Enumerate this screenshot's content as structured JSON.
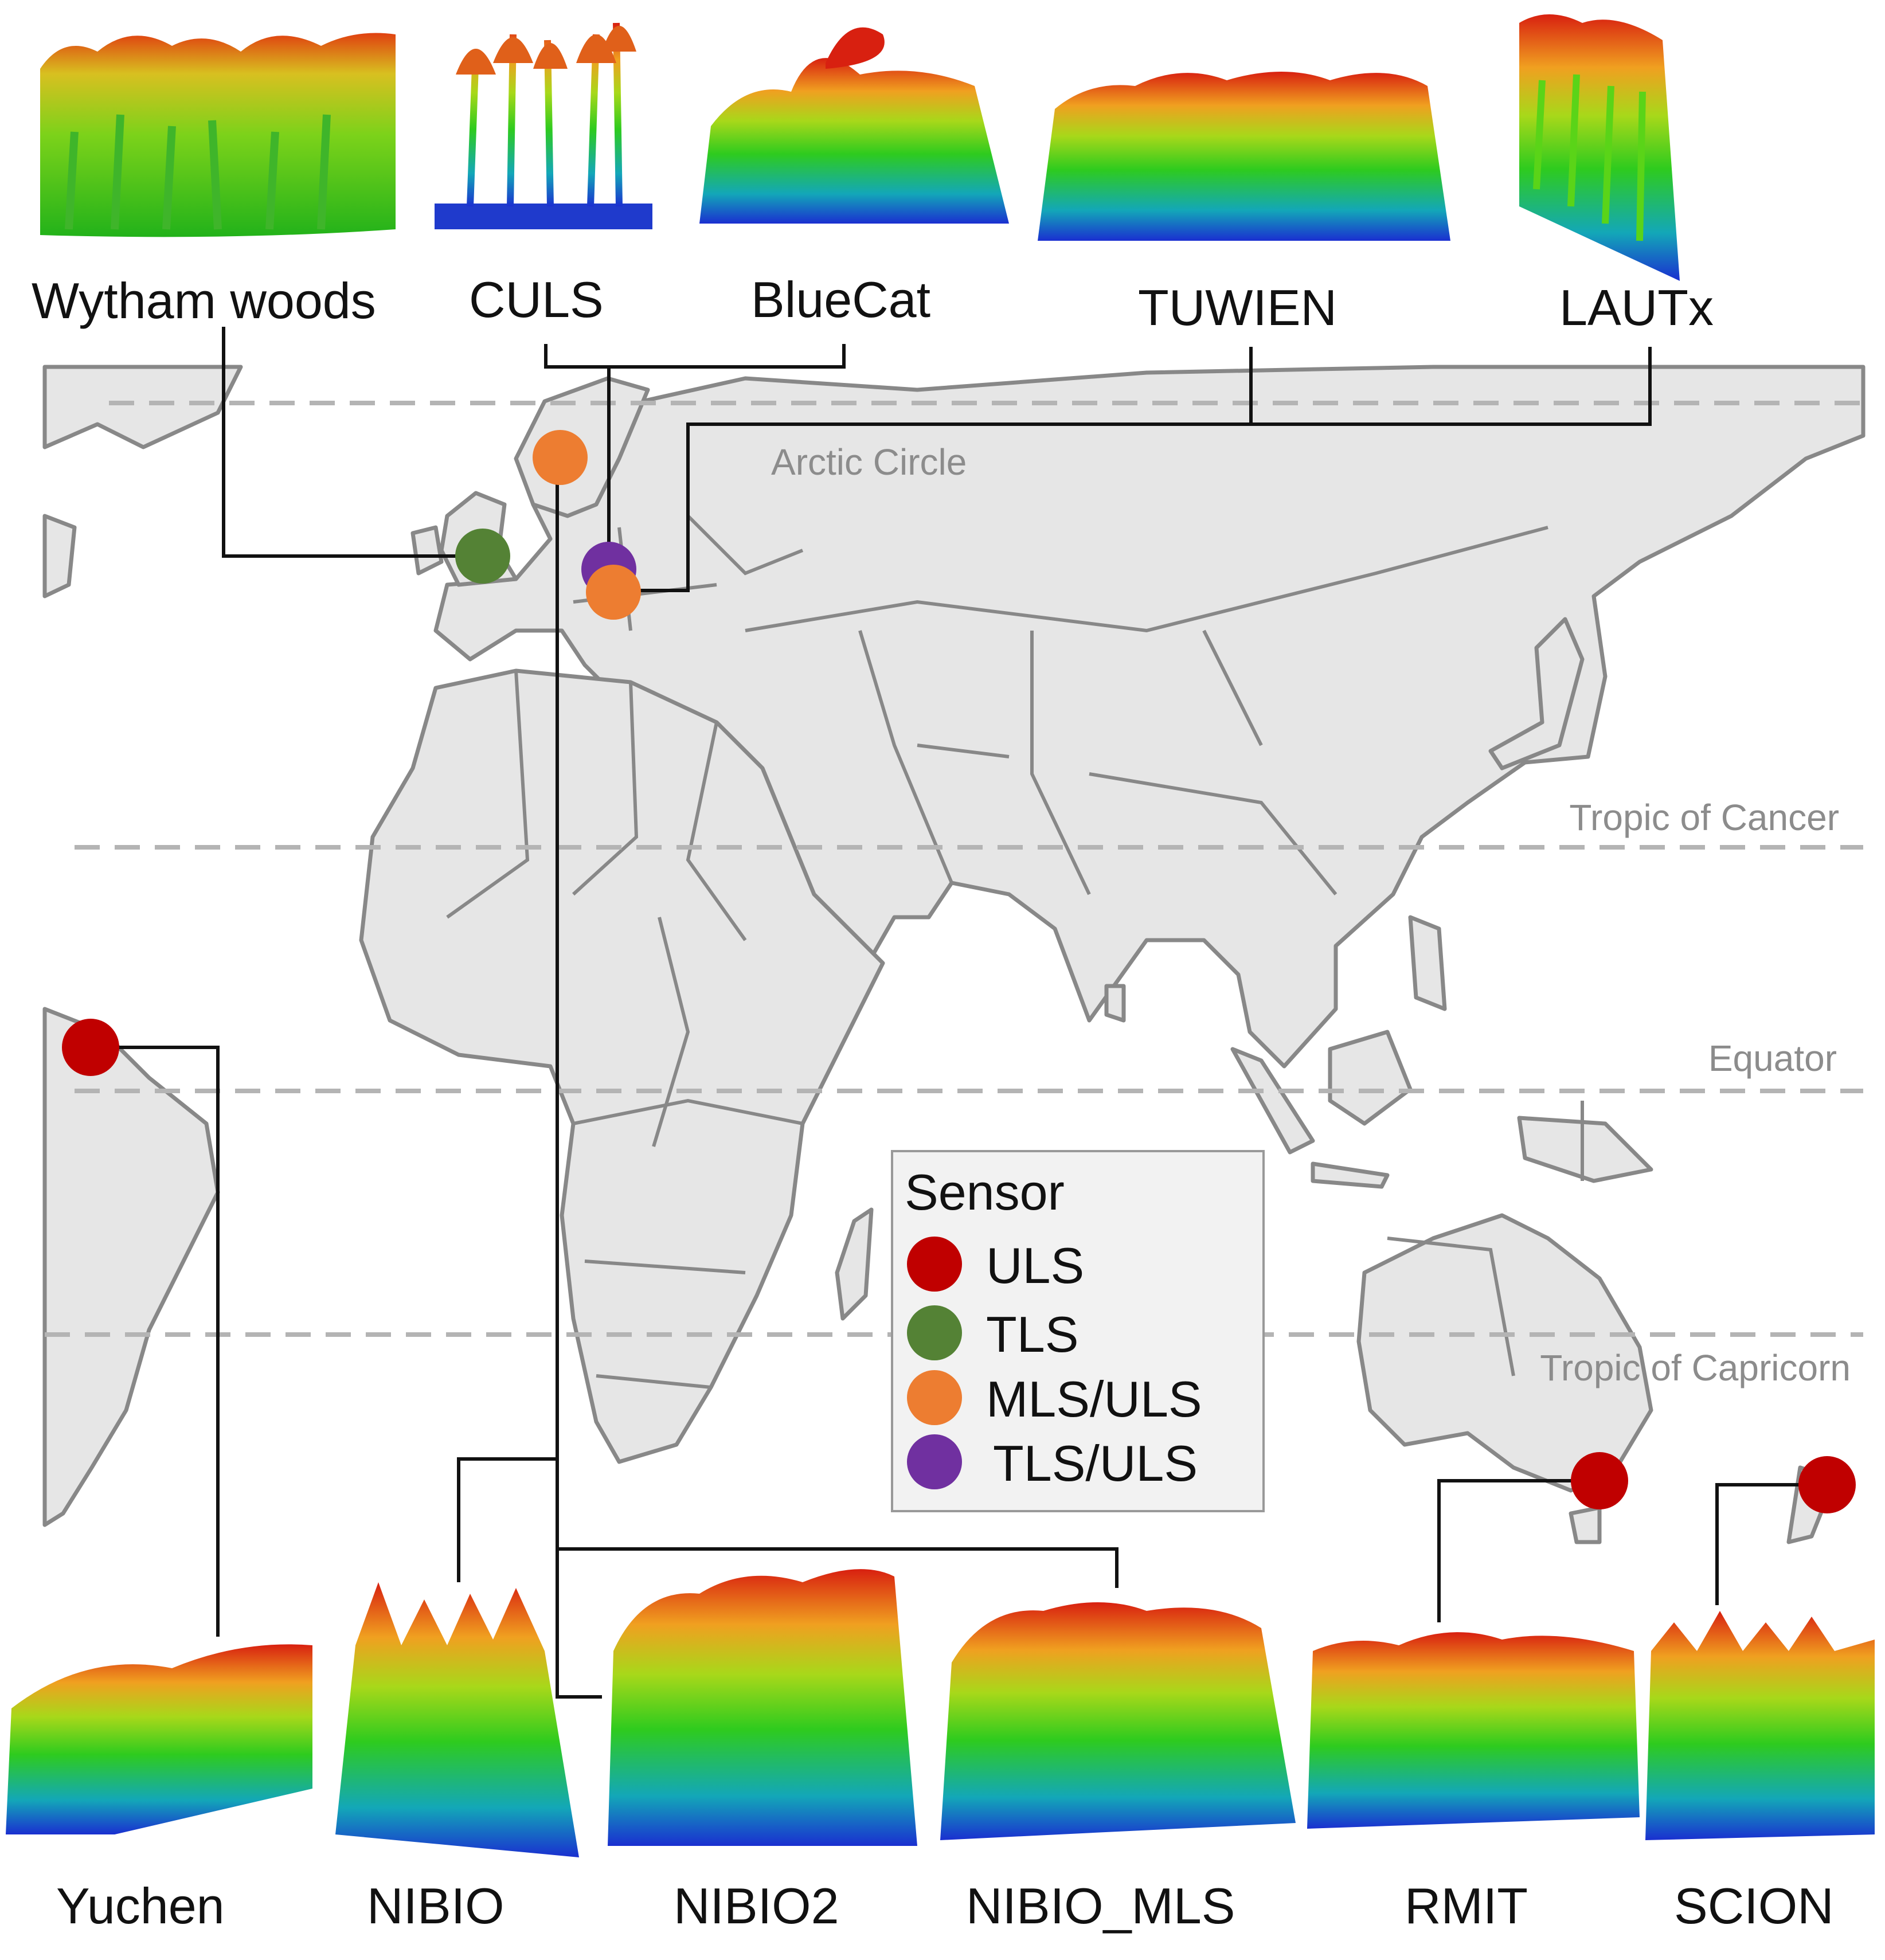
{
  "sites": [
    {
      "id": "wytham",
      "label": "Wytham woods",
      "sensor": "TLS"
    },
    {
      "id": "culs",
      "label": "CULS",
      "sensor": "TLS/ULS"
    },
    {
      "id": "bluecat",
      "label": "BlueCat",
      "sensor": "MLS/ULS"
    },
    {
      "id": "tuwien",
      "label": "TUWIEN",
      "sensor": "MLS/ULS"
    },
    {
      "id": "lautx",
      "label": "LAUTx",
      "sensor": "MLS/ULS"
    },
    {
      "id": "yuchen",
      "label": "Yuchen",
      "sensor": "ULS"
    },
    {
      "id": "nibio",
      "label": "NIBIO",
      "sensor": "MLS/ULS"
    },
    {
      "id": "nibio2",
      "label": "NIBIO2",
      "sensor": "MLS/ULS"
    },
    {
      "id": "nibio_mls",
      "label": "NIBIO_MLS",
      "sensor": "MLS/ULS"
    },
    {
      "id": "rmit",
      "label": "RMIT",
      "sensor": "ULS"
    },
    {
      "id": "scion",
      "label": "SCION",
      "sensor": "ULS"
    }
  ],
  "reference_lines": {
    "arctic": "Arctic Circle",
    "cancer": "Tropic of Cancer",
    "equator": "Equator",
    "capricorn": "Tropic of Capricorn"
  },
  "legend": {
    "title": "Sensor",
    "items": [
      {
        "label": "ULS",
        "color": "#c00000"
      },
      {
        "label": "TLS",
        "color": "#548235"
      },
      {
        "label": "MLS/ULS",
        "color": "#ed7d31"
      },
      {
        "label": "TLS/ULS",
        "color": "#7030a0"
      }
    ]
  },
  "colors": {
    "uls": "#c00000",
    "tls": "#548235",
    "mls_uls": "#ed7d31",
    "tls_uls": "#7030a0",
    "land": "#e6e6e6",
    "ocean": "#ffffff",
    "coast": "#888888"
  }
}
